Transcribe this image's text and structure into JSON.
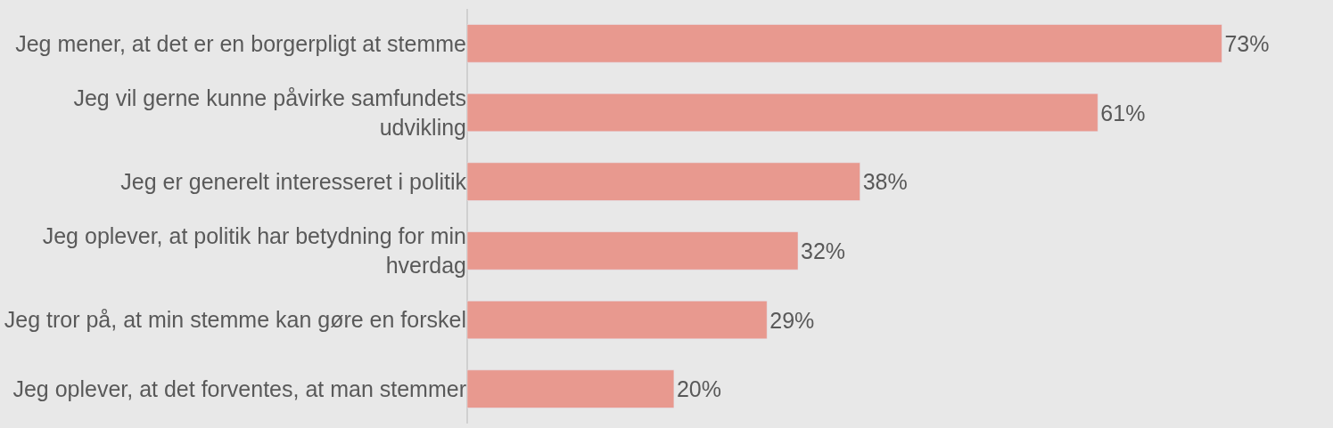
{
  "chart_data": {
    "type": "bar",
    "orientation": "horizontal",
    "categories": [
      "Jeg mener, at det er en borgerpligt at stemme",
      "Jeg vil gerne kunne påvirke samfundets udvikling",
      "Jeg er generelt interesseret i politik",
      "Jeg oplever, at politik har betydning for min hverdag",
      "Jeg tror på, at min stemme kan gøre en forskel",
      "Jeg oplever, at det forventes, at man stemmer"
    ],
    "values": [
      73,
      61,
      38,
      32,
      29,
      20
    ],
    "value_labels": [
      "73%",
      "61%",
      "38%",
      "32%",
      "29%",
      "20%"
    ],
    "color": "#e8998f",
    "grid": false,
    "legend": false
  }
}
